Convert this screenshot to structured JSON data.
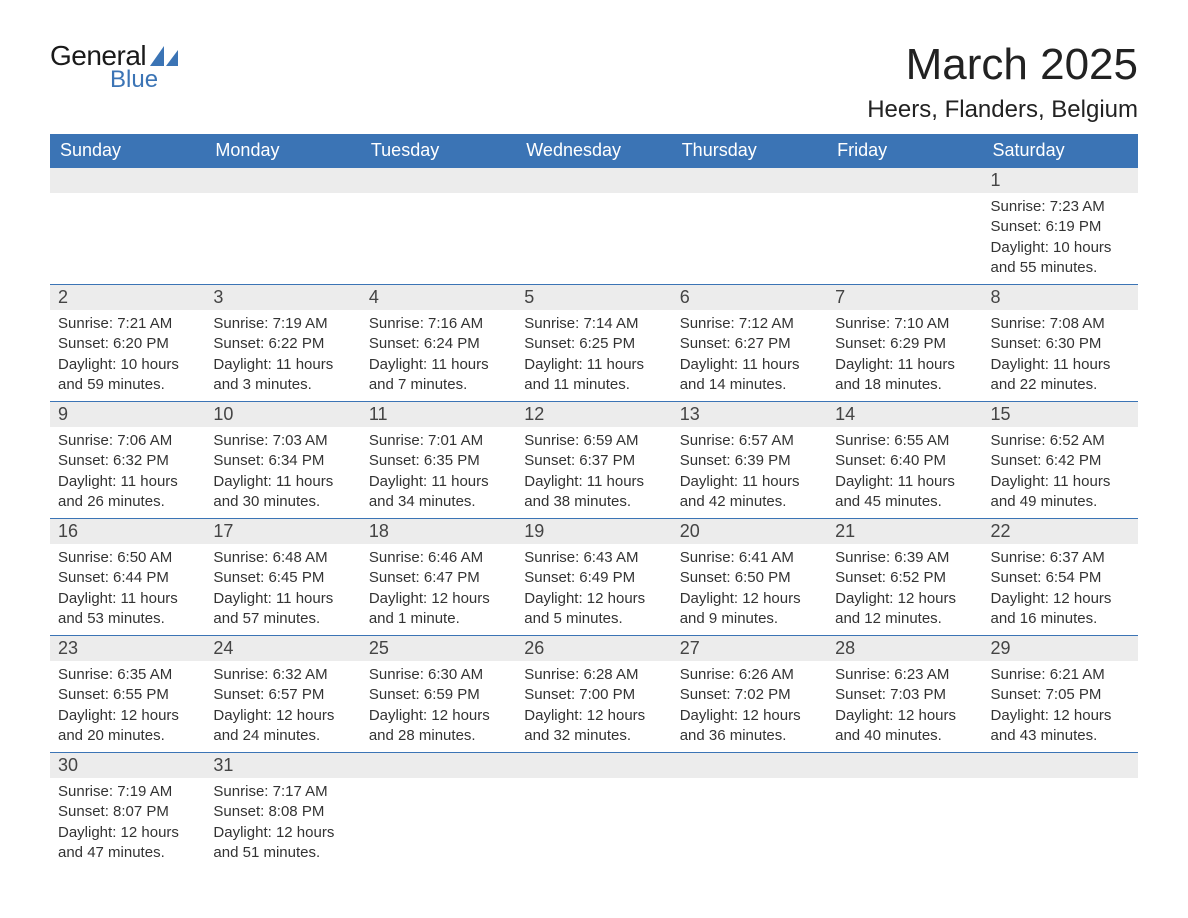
{
  "logo": {
    "text1": "General",
    "text2": "Blue",
    "brand_color": "#3b74b5"
  },
  "header": {
    "month": "March 2025",
    "location": "Heers, Flanders, Belgium"
  },
  "style": {
    "header_bg": "#3b74b5",
    "header_text": "#ffffff",
    "daynum_bg": "#ececec",
    "row_border": "#3b74b5",
    "body_text": "#333333",
    "page_bg": "#ffffff",
    "month_fontsize": 44,
    "location_fontsize": 24,
    "header_fontsize": 18,
    "cell_fontsize": 15
  },
  "columns": [
    "Sunday",
    "Monday",
    "Tuesday",
    "Wednesday",
    "Thursday",
    "Friday",
    "Saturday"
  ],
  "weeks": [
    [
      null,
      null,
      null,
      null,
      null,
      null,
      {
        "day": "1",
        "sunrise": "Sunrise: 7:23 AM",
        "sunset": "Sunset: 6:19 PM",
        "dl1": "Daylight: 10 hours",
        "dl2": "and 55 minutes."
      }
    ],
    [
      {
        "day": "2",
        "sunrise": "Sunrise: 7:21 AM",
        "sunset": "Sunset: 6:20 PM",
        "dl1": "Daylight: 10 hours",
        "dl2": "and 59 minutes."
      },
      {
        "day": "3",
        "sunrise": "Sunrise: 7:19 AM",
        "sunset": "Sunset: 6:22 PM",
        "dl1": "Daylight: 11 hours",
        "dl2": "and 3 minutes."
      },
      {
        "day": "4",
        "sunrise": "Sunrise: 7:16 AM",
        "sunset": "Sunset: 6:24 PM",
        "dl1": "Daylight: 11 hours",
        "dl2": "and 7 minutes."
      },
      {
        "day": "5",
        "sunrise": "Sunrise: 7:14 AM",
        "sunset": "Sunset: 6:25 PM",
        "dl1": "Daylight: 11 hours",
        "dl2": "and 11 minutes."
      },
      {
        "day": "6",
        "sunrise": "Sunrise: 7:12 AM",
        "sunset": "Sunset: 6:27 PM",
        "dl1": "Daylight: 11 hours",
        "dl2": "and 14 minutes."
      },
      {
        "day": "7",
        "sunrise": "Sunrise: 7:10 AM",
        "sunset": "Sunset: 6:29 PM",
        "dl1": "Daylight: 11 hours",
        "dl2": "and 18 minutes."
      },
      {
        "day": "8",
        "sunrise": "Sunrise: 7:08 AM",
        "sunset": "Sunset: 6:30 PM",
        "dl1": "Daylight: 11 hours",
        "dl2": "and 22 minutes."
      }
    ],
    [
      {
        "day": "9",
        "sunrise": "Sunrise: 7:06 AM",
        "sunset": "Sunset: 6:32 PM",
        "dl1": "Daylight: 11 hours",
        "dl2": "and 26 minutes."
      },
      {
        "day": "10",
        "sunrise": "Sunrise: 7:03 AM",
        "sunset": "Sunset: 6:34 PM",
        "dl1": "Daylight: 11 hours",
        "dl2": "and 30 minutes."
      },
      {
        "day": "11",
        "sunrise": "Sunrise: 7:01 AM",
        "sunset": "Sunset: 6:35 PM",
        "dl1": "Daylight: 11 hours",
        "dl2": "and 34 minutes."
      },
      {
        "day": "12",
        "sunrise": "Sunrise: 6:59 AM",
        "sunset": "Sunset: 6:37 PM",
        "dl1": "Daylight: 11 hours",
        "dl2": "and 38 minutes."
      },
      {
        "day": "13",
        "sunrise": "Sunrise: 6:57 AM",
        "sunset": "Sunset: 6:39 PM",
        "dl1": "Daylight: 11 hours",
        "dl2": "and 42 minutes."
      },
      {
        "day": "14",
        "sunrise": "Sunrise: 6:55 AM",
        "sunset": "Sunset: 6:40 PM",
        "dl1": "Daylight: 11 hours",
        "dl2": "and 45 minutes."
      },
      {
        "day": "15",
        "sunrise": "Sunrise: 6:52 AM",
        "sunset": "Sunset: 6:42 PM",
        "dl1": "Daylight: 11 hours",
        "dl2": "and 49 minutes."
      }
    ],
    [
      {
        "day": "16",
        "sunrise": "Sunrise: 6:50 AM",
        "sunset": "Sunset: 6:44 PM",
        "dl1": "Daylight: 11 hours",
        "dl2": "and 53 minutes."
      },
      {
        "day": "17",
        "sunrise": "Sunrise: 6:48 AM",
        "sunset": "Sunset: 6:45 PM",
        "dl1": "Daylight: 11 hours",
        "dl2": "and 57 minutes."
      },
      {
        "day": "18",
        "sunrise": "Sunrise: 6:46 AM",
        "sunset": "Sunset: 6:47 PM",
        "dl1": "Daylight: 12 hours",
        "dl2": "and 1 minute."
      },
      {
        "day": "19",
        "sunrise": "Sunrise: 6:43 AM",
        "sunset": "Sunset: 6:49 PM",
        "dl1": "Daylight: 12 hours",
        "dl2": "and 5 minutes."
      },
      {
        "day": "20",
        "sunrise": "Sunrise: 6:41 AM",
        "sunset": "Sunset: 6:50 PM",
        "dl1": "Daylight: 12 hours",
        "dl2": "and 9 minutes."
      },
      {
        "day": "21",
        "sunrise": "Sunrise: 6:39 AM",
        "sunset": "Sunset: 6:52 PM",
        "dl1": "Daylight: 12 hours",
        "dl2": "and 12 minutes."
      },
      {
        "day": "22",
        "sunrise": "Sunrise: 6:37 AM",
        "sunset": "Sunset: 6:54 PM",
        "dl1": "Daylight: 12 hours",
        "dl2": "and 16 minutes."
      }
    ],
    [
      {
        "day": "23",
        "sunrise": "Sunrise: 6:35 AM",
        "sunset": "Sunset: 6:55 PM",
        "dl1": "Daylight: 12 hours",
        "dl2": "and 20 minutes."
      },
      {
        "day": "24",
        "sunrise": "Sunrise: 6:32 AM",
        "sunset": "Sunset: 6:57 PM",
        "dl1": "Daylight: 12 hours",
        "dl2": "and 24 minutes."
      },
      {
        "day": "25",
        "sunrise": "Sunrise: 6:30 AM",
        "sunset": "Sunset: 6:59 PM",
        "dl1": "Daylight: 12 hours",
        "dl2": "and 28 minutes."
      },
      {
        "day": "26",
        "sunrise": "Sunrise: 6:28 AM",
        "sunset": "Sunset: 7:00 PM",
        "dl1": "Daylight: 12 hours",
        "dl2": "and 32 minutes."
      },
      {
        "day": "27",
        "sunrise": "Sunrise: 6:26 AM",
        "sunset": "Sunset: 7:02 PM",
        "dl1": "Daylight: 12 hours",
        "dl2": "and 36 minutes."
      },
      {
        "day": "28",
        "sunrise": "Sunrise: 6:23 AM",
        "sunset": "Sunset: 7:03 PM",
        "dl1": "Daylight: 12 hours",
        "dl2": "and 40 minutes."
      },
      {
        "day": "29",
        "sunrise": "Sunrise: 6:21 AM",
        "sunset": "Sunset: 7:05 PM",
        "dl1": "Daylight: 12 hours",
        "dl2": "and 43 minutes."
      }
    ],
    [
      {
        "day": "30",
        "sunrise": "Sunrise: 7:19 AM",
        "sunset": "Sunset: 8:07 PM",
        "dl1": "Daylight: 12 hours",
        "dl2": "and 47 minutes."
      },
      {
        "day": "31",
        "sunrise": "Sunrise: 7:17 AM",
        "sunset": "Sunset: 8:08 PM",
        "dl1": "Daylight: 12 hours",
        "dl2": "and 51 minutes."
      },
      null,
      null,
      null,
      null,
      null
    ]
  ]
}
